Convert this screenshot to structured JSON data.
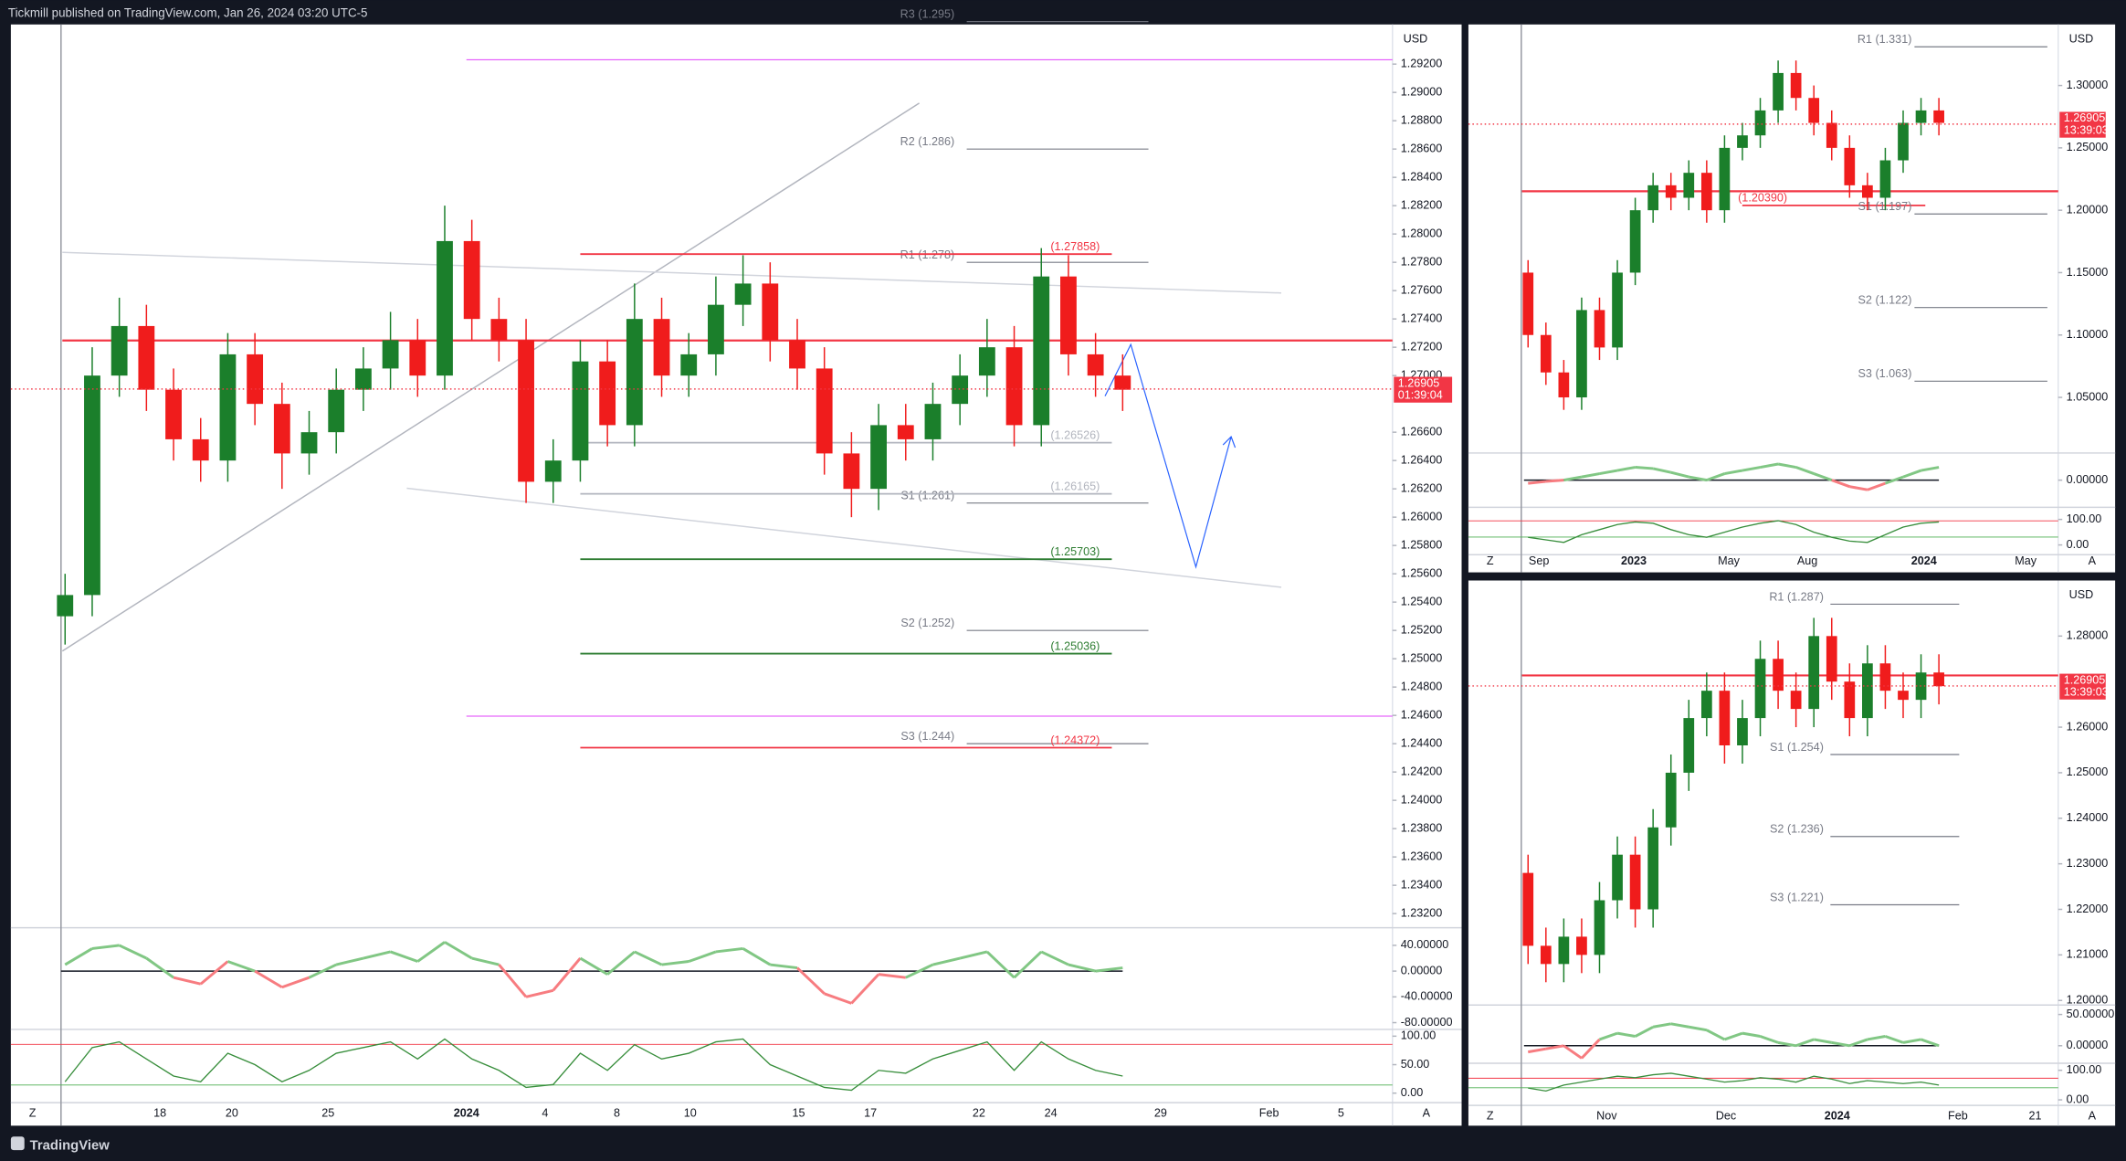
{
  "header": "Tickmill published on TradingView.com, Jan 26, 2024 03:20 UTC-5",
  "footer": "TradingView",
  "axis_buttons": [
    "Z",
    "A"
  ],
  "panels": [
    {
      "currency": "USD",
      "price": 1.26905,
      "countdown": "01:39:04",
      "ylim": [
        1.2311,
        1.2948
      ],
      "yticks": [
        {
          "value": 1.292,
          "label": "1.29200"
        },
        {
          "value": 1.29,
          "label": "1.29000"
        },
        {
          "value": 1.288,
          "label": "1.28800"
        },
        {
          "value": 1.286,
          "label": "1.28600"
        },
        {
          "value": 1.284,
          "label": "1.28400"
        },
        {
          "value": 1.282,
          "label": "1.28200"
        },
        {
          "value": 1.28,
          "label": "1.28000"
        },
        {
          "value": 1.278,
          "label": "1.27800"
        },
        {
          "value": 1.276,
          "label": "1.27600"
        },
        {
          "value": 1.274,
          "label": "1.27400"
        },
        {
          "value": 1.272,
          "label": "1.27200"
        },
        {
          "value": 1.27,
          "label": "1.27000"
        },
        {
          "value": 1.266,
          "label": "1.26600"
        },
        {
          "value": 1.264,
          "label": "1.26400"
        },
        {
          "value": 1.262,
          "label": "1.26200"
        },
        {
          "value": 1.26,
          "label": "1.26000"
        },
        {
          "value": 1.258,
          "label": "1.25800"
        },
        {
          "value": 1.256,
          "label": "1.25600"
        },
        {
          "value": 1.254,
          "label": "1.25400"
        },
        {
          "value": 1.252,
          "label": "1.25200"
        },
        {
          "value": 1.25,
          "label": "1.25000"
        },
        {
          "value": 1.248,
          "label": "1.24800"
        },
        {
          "value": 1.246,
          "label": "1.24600"
        },
        {
          "value": 1.244,
          "label": "1.24400"
        },
        {
          "value": 1.242,
          "label": "1.24200"
        },
        {
          "value": 1.24,
          "label": "1.24000"
        },
        {
          "value": 1.238,
          "label": "1.23800"
        },
        {
          "value": 1.236,
          "label": "1.23600"
        },
        {
          "value": 1.234,
          "label": "1.23400"
        },
        {
          "value": 1.232,
          "label": "1.23200"
        }
      ],
      "candles": [
        [
          1.253,
          1.256,
          1.251,
          1.2545
        ],
        [
          1.2545,
          1.272,
          1.253,
          1.27
        ],
        [
          1.27,
          1.2755,
          1.2685,
          1.2735
        ],
        [
          1.2735,
          1.275,
          1.2675,
          1.269
        ],
        [
          1.269,
          1.2705,
          1.264,
          1.2655
        ],
        [
          1.2655,
          1.267,
          1.2625,
          1.264
        ],
        [
          1.264,
          1.273,
          1.2625,
          1.2715
        ],
        [
          1.2715,
          1.273,
          1.2665,
          1.268
        ],
        [
          1.268,
          1.2695,
          1.262,
          1.2645
        ],
        [
          1.2645,
          1.2675,
          1.263,
          1.266
        ],
        [
          1.266,
          1.2705,
          1.2645,
          1.269
        ],
        [
          1.269,
          1.272,
          1.2675,
          1.2705
        ],
        [
          1.2705,
          1.2745,
          1.269,
          1.2725
        ],
        [
          1.2725,
          1.274,
          1.2685,
          1.27
        ],
        [
          1.27,
          1.282,
          1.269,
          1.2795
        ],
        [
          1.2795,
          1.281,
          1.2725,
          1.274
        ],
        [
          1.274,
          1.2755,
          1.271,
          1.2725
        ],
        [
          1.2725,
          1.274,
          1.261,
          1.2625
        ],
        [
          1.2625,
          1.2655,
          1.261,
          1.264
        ],
        [
          1.264,
          1.2725,
          1.2625,
          1.271
        ],
        [
          1.271,
          1.2725,
          1.265,
          1.2665
        ],
        [
          1.2665,
          1.2765,
          1.265,
          1.274
        ],
        [
          1.274,
          1.2755,
          1.2685,
          1.27
        ],
        [
          1.27,
          1.273,
          1.2685,
          1.2715
        ],
        [
          1.2715,
          1.277,
          1.27,
          1.275
        ],
        [
          1.275,
          1.2785,
          1.2735,
          1.2765
        ],
        [
          1.2765,
          1.278,
          1.271,
          1.2725
        ],
        [
          1.2725,
          1.274,
          1.269,
          1.2705
        ],
        [
          1.2705,
          1.272,
          1.263,
          1.2645
        ],
        [
          1.2645,
          1.266,
          1.26,
          1.262
        ],
        [
          1.262,
          1.268,
          1.2605,
          1.2665
        ],
        [
          1.2665,
          1.268,
          1.264,
          1.2655
        ],
        [
          1.2655,
          1.2695,
          1.264,
          1.268
        ],
        [
          1.268,
          1.2715,
          1.2665,
          1.27
        ],
        [
          1.27,
          1.274,
          1.2685,
          1.272
        ],
        [
          1.272,
          1.2735,
          1.265,
          1.2665
        ],
        [
          1.2665,
          1.279,
          1.265,
          1.277
        ],
        [
          1.277,
          1.2785,
          1.27,
          1.2715
        ],
        [
          1.2715,
          1.273,
          1.2685,
          1.27
        ],
        [
          1.27,
          1.2715,
          1.2675,
          1.269
        ]
      ],
      "levels": [
        {
          "label": "R3 (1.295)",
          "value": 1.295,
          "color": "#787b86"
        },
        {
          "label": "R2 (1.286)",
          "value": 1.286,
          "color": "#787b86"
        },
        {
          "label": "R1 (1.278)",
          "value": 1.278,
          "color": "#787b86"
        },
        {
          "label": "(1.27858)",
          "value": 1.27858,
          "color": "#f23645"
        },
        {
          "label": "S1 (1.261)",
          "value": 1.261,
          "color": "#787b86"
        },
        {
          "label": "(1.26165)",
          "value": 1.26165,
          "color": "#b2b5be"
        },
        {
          "label": "(1.26526)",
          "value": 1.26526,
          "color": "#b2b5be"
        },
        {
          "label": "(1.25703)",
          "value": 1.25703,
          "color": "#2e7d32"
        },
        {
          "label": "S2 (1.252)",
          "value": 1.252,
          "color": "#787b86"
        },
        {
          "label": "(1.25036)",
          "value": 1.25036,
          "color": "#2e7d32"
        },
        {
          "label": "S3 (1.244)",
          "value": 1.244,
          "color": "#787b86"
        },
        {
          "label": "(1.24372)",
          "value": 1.24372,
          "color": "#f23645"
        }
      ],
      "x_labels": [
        "18",
        "20",
        "25",
        "2024",
        "4",
        "8",
        "10",
        "15",
        "17",
        "22",
        "24",
        "29",
        "Feb",
        "5"
      ],
      "osc": {
        "ylim": [
          -88.4,
          65.3
        ],
        "yticks": [
          {
            "value": 40,
            "label": "40.00000"
          },
          {
            "value": 0,
            "label": "0.00000"
          },
          {
            "value": -40,
            "label": "-40.00000"
          },
          {
            "value": -80,
            "label": "-80.00000"
          }
        ],
        "values": [
          10,
          35,
          40,
          20,
          -10,
          -20,
          15,
          0,
          -25,
          -10,
          10,
          20,
          30,
          15,
          45,
          20,
          10,
          -40,
          -30,
          20,
          -5,
          30,
          10,
          15,
          30,
          35,
          10,
          5,
          -35,
          -50,
          -5,
          -10,
          10,
          20,
          30,
          -10,
          30,
          10,
          0,
          5
        ]
      },
      "stoch": {
        "ylim": [
          -14.3,
          109.5
        ],
        "yticks": [
          {
            "value": 100,
            "label": "100.00"
          },
          {
            "value": 50,
            "label": "50.00"
          },
          {
            "value": 0,
            "label": "0.00"
          }
        ],
        "values": [
          20,
          80,
          90,
          60,
          30,
          20,
          70,
          50,
          20,
          40,
          70,
          80,
          90,
          60,
          95,
          60,
          40,
          10,
          15,
          70,
          40,
          85,
          60,
          70,
          90,
          95,
          50,
          30,
          10,
          5,
          40,
          35,
          60,
          75,
          90,
          40,
          90,
          60,
          40,
          30
        ]
      }
    },
    {
      "currency": "USD",
      "price": 1.26905,
      "countdown": "13:39:03",
      "ylim": [
        1.0065,
        1.3489
      ],
      "yticks": [
        {
          "value": 1.3,
          "label": "1.30000"
        },
        {
          "value": 1.25,
          "label": "1.25000"
        },
        {
          "value": 1.2,
          "label": "1.20000"
        },
        {
          "value": 1.15,
          "label": "1.15000"
        },
        {
          "value": 1.1,
          "label": "1.10000"
        },
        {
          "value": 1.05,
          "label": "1.05000"
        }
      ],
      "candles": [
        [
          1.15,
          1.16,
          1.09,
          1.1
        ],
        [
          1.1,
          1.11,
          1.06,
          1.07
        ],
        [
          1.07,
          1.08,
          1.04,
          1.05
        ],
        [
          1.05,
          1.13,
          1.04,
          1.12
        ],
        [
          1.12,
          1.13,
          1.08,
          1.09
        ],
        [
          1.09,
          1.16,
          1.08,
          1.15
        ],
        [
          1.15,
          1.21,
          1.14,
          1.2
        ],
        [
          1.2,
          1.23,
          1.19,
          1.22
        ],
        [
          1.22,
          1.23,
          1.2,
          1.21
        ],
        [
          1.21,
          1.24,
          1.2,
          1.23
        ],
        [
          1.23,
          1.24,
          1.19,
          1.2
        ],
        [
          1.2,
          1.26,
          1.19,
          1.25
        ],
        [
          1.25,
          1.27,
          1.24,
          1.26
        ],
        [
          1.26,
          1.29,
          1.25,
          1.28
        ],
        [
          1.28,
          1.32,
          1.27,
          1.31
        ],
        [
          1.31,
          1.32,
          1.28,
          1.29
        ],
        [
          1.29,
          1.3,
          1.26,
          1.27
        ],
        [
          1.27,
          1.28,
          1.24,
          1.25
        ],
        [
          1.25,
          1.26,
          1.21,
          1.22
        ],
        [
          1.22,
          1.23,
          1.2,
          1.21
        ],
        [
          1.21,
          1.25,
          1.2,
          1.24
        ],
        [
          1.24,
          1.28,
          1.23,
          1.27
        ],
        [
          1.27,
          1.29,
          1.26,
          1.28
        ],
        [
          1.28,
          1.29,
          1.26,
          1.27
        ]
      ],
      "levels": [
        {
          "label": "R1 (1.331)",
          "value": 1.331,
          "color": "#787b86"
        },
        {
          "label": "(1.20390)",
          "value": 1.2039,
          "color": "#f23645"
        },
        {
          "label": "S1 (1.197)",
          "value": 1.197,
          "color": "#787b86"
        },
        {
          "label": "S2 (1.122)",
          "value": 1.122,
          "color": "#787b86"
        },
        {
          "label": "S3 (1.063)",
          "value": 1.063,
          "color": "#787b86"
        }
      ],
      "x_labels": [
        "Sep",
        "2023",
        "May",
        "Aug",
        "2024",
        "May"
      ],
      "osc": {
        "ylim": [
          -0.04,
          0.04
        ],
        "yticks": [
          {
            "value": 0,
            "label": "0.00000"
          }
        ],
        "values": [
          -0.005,
          -0.002,
          0,
          0.005,
          0.01,
          0.015,
          0.02,
          0.018,
          0.012,
          0.005,
          0,
          0.01,
          0.015,
          0.02,
          0.025,
          0.02,
          0.01,
          0,
          -0.01,
          -0.015,
          -0.005,
          0.005,
          0.015,
          0.02
        ]
      },
      "stoch": {
        "ylim": [
          -33,
          147.6
        ],
        "yticks": [
          {
            "value": 100,
            "label": "100.00"
          },
          {
            "value": 0,
            "label": "0.00"
          }
        ],
        "values": [
          30,
          20,
          10,
          40,
          60,
          80,
          90,
          85,
          60,
          40,
          30,
          50,
          70,
          85,
          95,
          80,
          50,
          30,
          15,
          10,
          40,
          70,
          85,
          90
        ]
      }
    },
    {
      "currency": "USD",
      "price": 1.26905,
      "countdown": "13:39:03",
      "ylim": [
        1.1993,
        1.2922
      ],
      "yticks": [
        {
          "value": 1.28,
          "label": "1.28000"
        },
        {
          "value": 1.26,
          "label": "1.26000"
        },
        {
          "value": 1.25,
          "label": "1.25000"
        },
        {
          "value": 1.24,
          "label": "1.24000"
        },
        {
          "value": 1.23,
          "label": "1.23000"
        },
        {
          "value": 1.22,
          "label": "1.22000"
        },
        {
          "value": 1.21,
          "label": "1.21000"
        },
        {
          "value": 1.2,
          "label": "1.20000"
        }
      ],
      "candles": [
        [
          1.228,
          1.232,
          1.208,
          1.212
        ],
        [
          1.212,
          1.216,
          1.204,
          1.208
        ],
        [
          1.208,
          1.218,
          1.204,
          1.214
        ],
        [
          1.214,
          1.218,
          1.206,
          1.21
        ],
        [
          1.21,
          1.226,
          1.206,
          1.222
        ],
        [
          1.222,
          1.236,
          1.218,
          1.232
        ],
        [
          1.232,
          1.236,
          1.216,
          1.22
        ],
        [
          1.22,
          1.242,
          1.216,
          1.238
        ],
        [
          1.238,
          1.254,
          1.234,
          1.25
        ],
        [
          1.25,
          1.266,
          1.246,
          1.262
        ],
        [
          1.262,
          1.272,
          1.258,
          1.268
        ],
        [
          1.268,
          1.272,
          1.252,
          1.256
        ],
        [
          1.256,
          1.266,
          1.252,
          1.262
        ],
        [
          1.262,
          1.279,
          1.258,
          1.275
        ],
        [
          1.275,
          1.279,
          1.264,
          1.268
        ],
        [
          1.268,
          1.272,
          1.26,
          1.264
        ],
        [
          1.264,
          1.284,
          1.26,
          1.28
        ],
        [
          1.28,
          1.284,
          1.266,
          1.27
        ],
        [
          1.27,
          1.274,
          1.258,
          1.262
        ],
        [
          1.262,
          1.278,
          1.258,
          1.274
        ],
        [
          1.274,
          1.278,
          1.264,
          1.268
        ],
        [
          1.268,
          1.272,
          1.262,
          1.266
        ],
        [
          1.266,
          1.276,
          1.262,
          1.272
        ],
        [
          1.272,
          1.276,
          1.265,
          1.269
        ]
      ],
      "levels": [
        {
          "label": "R1 (1.287)",
          "value": 1.287,
          "color": "#787b86"
        },
        {
          "label": "S1 (1.254)",
          "value": 1.254,
          "color": "#787b86"
        },
        {
          "label": "S2 (1.236)",
          "value": 1.236,
          "color": "#787b86"
        },
        {
          "label": "S3 (1.221)",
          "value": 1.221,
          "color": "#787b86"
        }
      ],
      "x_labels": [
        "Nov",
        "Dec",
        "2024",
        "Feb",
        "21"
      ],
      "osc": {
        "ylim": [
          -26,
          63
        ],
        "yticks": [
          {
            "value": 50,
            "label": "50.00000"
          },
          {
            "value": 0,
            "label": "0.00000"
          }
        ],
        "values": [
          -10,
          -5,
          0,
          -20,
          10,
          20,
          15,
          30,
          35,
          30,
          25,
          10,
          20,
          15,
          5,
          0,
          10,
          5,
          0,
          10,
          15,
          5,
          10,
          0
        ]
      },
      "stoch": {
        "ylim": [
          -14,
          119
        ],
        "yticks": [
          {
            "value": 100,
            "label": "100.00"
          },
          {
            "value": 0,
            "label": "0.00"
          }
        ],
        "values": [
          40,
          30,
          50,
          60,
          70,
          80,
          75,
          85,
          90,
          80,
          70,
          60,
          65,
          75,
          70,
          60,
          80,
          70,
          55,
          65,
          60,
          55,
          60,
          50
        ]
      }
    }
  ]
}
